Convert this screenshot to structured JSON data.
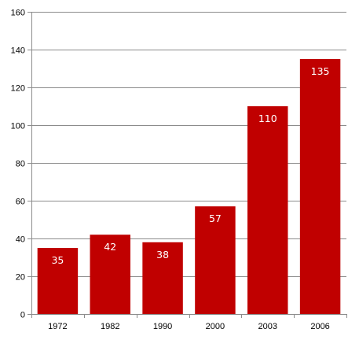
{
  "chart_data": {
    "type": "bar",
    "title": "",
    "xlabel": "",
    "ylabel": "",
    "categories": [
      "1972",
      "1982",
      "1990",
      "2000",
      "2003",
      "2006"
    ],
    "values": [
      35,
      42,
      38,
      57,
      110,
      135
    ],
    "data_labels": [
      "35",
      "42",
      "38",
      "57",
      "110",
      "135"
    ],
    "ylim": [
      0,
      160
    ],
    "yticks": [
      0,
      20,
      40,
      60,
      80,
      100,
      120,
      140,
      160
    ],
    "ytick_labels": [
      "0",
      "20",
      "40",
      "60",
      "80",
      "100",
      "120",
      "140",
      "160"
    ],
    "grid": true,
    "legend": "none",
    "bar_color": "#C00000",
    "label_color": "#FFFFFF"
  }
}
